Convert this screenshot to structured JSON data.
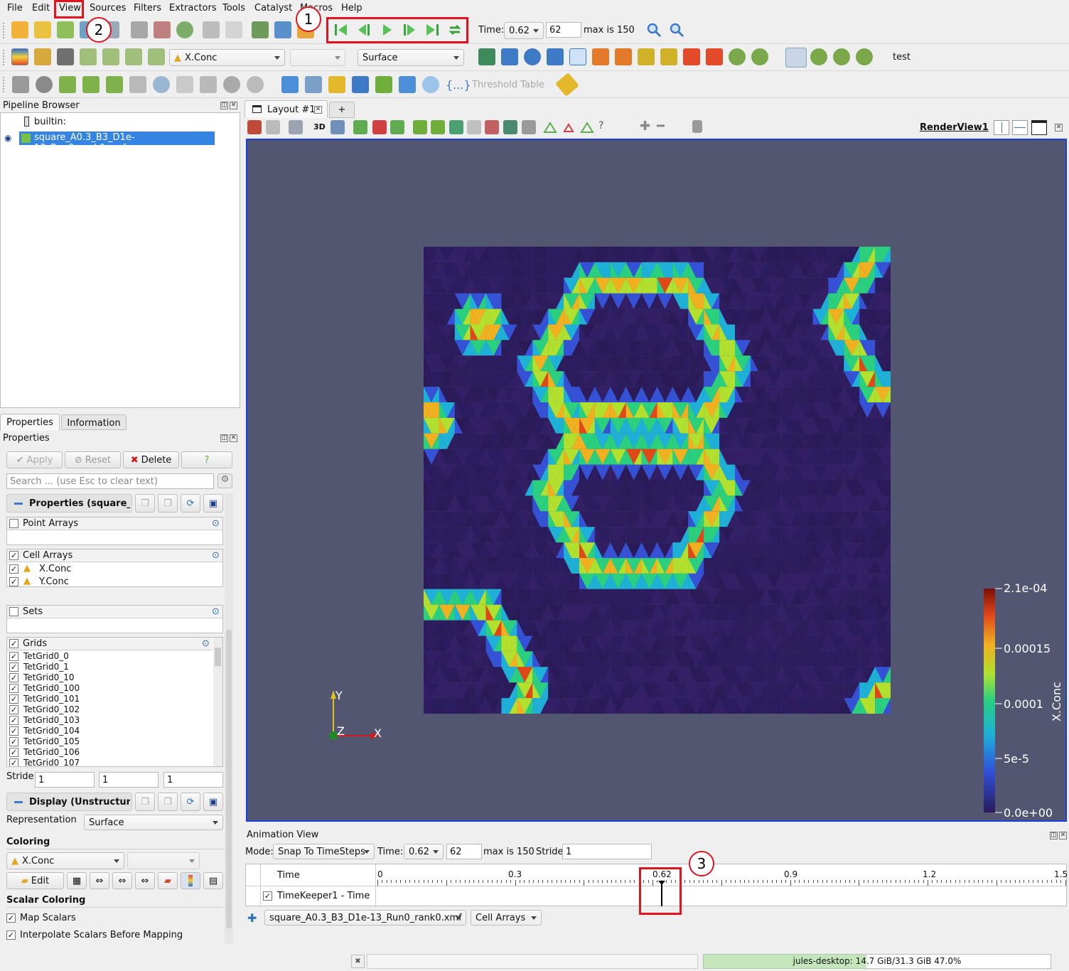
{
  "menubar": {
    "items": [
      "File",
      "Edit",
      "View",
      "Sources",
      "Filters",
      "Extractors",
      "Tools",
      "Catalyst",
      "Macros",
      "Help"
    ]
  },
  "time_toolbar": {
    "time_label": "Time:",
    "time_value": "0.62",
    "step_value": "62",
    "max_label": "max is 150"
  },
  "color_toolbar": {
    "array": "X.Conc",
    "representation": "Surface",
    "test_label": "test"
  },
  "filters_toolbar": {
    "threshold_table": "Threshold Table"
  },
  "pipeline": {
    "title": "Pipeline Browser",
    "builtin": "builtin:",
    "source": "square_A0.3_B3_D1e-13_Run0_rank0.xmf"
  },
  "properties_panel": {
    "tabs": [
      "Properties",
      "Information"
    ],
    "title": "Properties",
    "apply": "Apply",
    "reset": "Reset",
    "delete": "Delete",
    "help": "?",
    "search_placeholder": "Search ... (use Esc to clear text)",
    "properties_section": "Properties (square_",
    "point_arrays": "Point Arrays",
    "cell_arrays": "Cell Arrays",
    "cell_array_items": [
      "X.Conc",
      "Y.Conc"
    ],
    "sets": "Sets",
    "grids": "Grids",
    "grid_items": [
      "TetGrid0_0",
      "TetGrid0_1",
      "TetGrid0_10",
      "TetGrid0_100",
      "TetGrid0_101",
      "TetGrid0_102",
      "TetGrid0_103",
      "TetGrid0_104",
      "TetGrid0_105",
      "TetGrid0_106",
      "TetGrid0_107"
    ],
    "stride_label": "Stride",
    "stride_values": [
      "1",
      "1",
      "1"
    ],
    "display_section": "Display (Unstructure",
    "representation_label": "Representation",
    "representation_value": "Surface",
    "coloring_label": "Coloring",
    "coloring_value": "X.Conc",
    "edit": "Edit",
    "scalar_coloring": "Scalar Coloring",
    "map_scalars": "Map Scalars",
    "interpolate": "Interpolate Scalars Before Mapping"
  },
  "layout": {
    "tab": "Layout #1",
    "add": "+",
    "view_name": "RenderView1",
    "label_3d": "3D"
  },
  "colorbar": {
    "title": "X.Conc",
    "labels": [
      "2.1e-04",
      "0.00015",
      "0.0001",
      "5e-5",
      "0.0e+00"
    ]
  },
  "axes": {
    "x": "X",
    "y": "Y",
    "z": "Z"
  },
  "animation_view": {
    "title": "Animation View",
    "mode_label": "Mode:",
    "mode_value": "Snap To TimeSteps",
    "time_label": "Time:",
    "time_value": "0.62",
    "step_value": "62",
    "max_label": "max is 150",
    "stride_label": "Stride",
    "stride_value": "1",
    "time_col": "Time",
    "track": "TimeKeeper1 - Time",
    "ticks": [
      "0",
      "0.3",
      "0.62",
      "0.9",
      "1.2",
      "1.5"
    ],
    "source_combo": "square_A0.3_B3_D1e-13_Run0_rank0.xmf",
    "arrays_combo": "Cell Arrays"
  },
  "status": {
    "memory": "jules-desktop: 14.7 GiB/31.3 GiB 47.0%",
    "memory_fraction": 0.47
  },
  "annotations": [
    "1",
    "2",
    "3"
  ]
}
